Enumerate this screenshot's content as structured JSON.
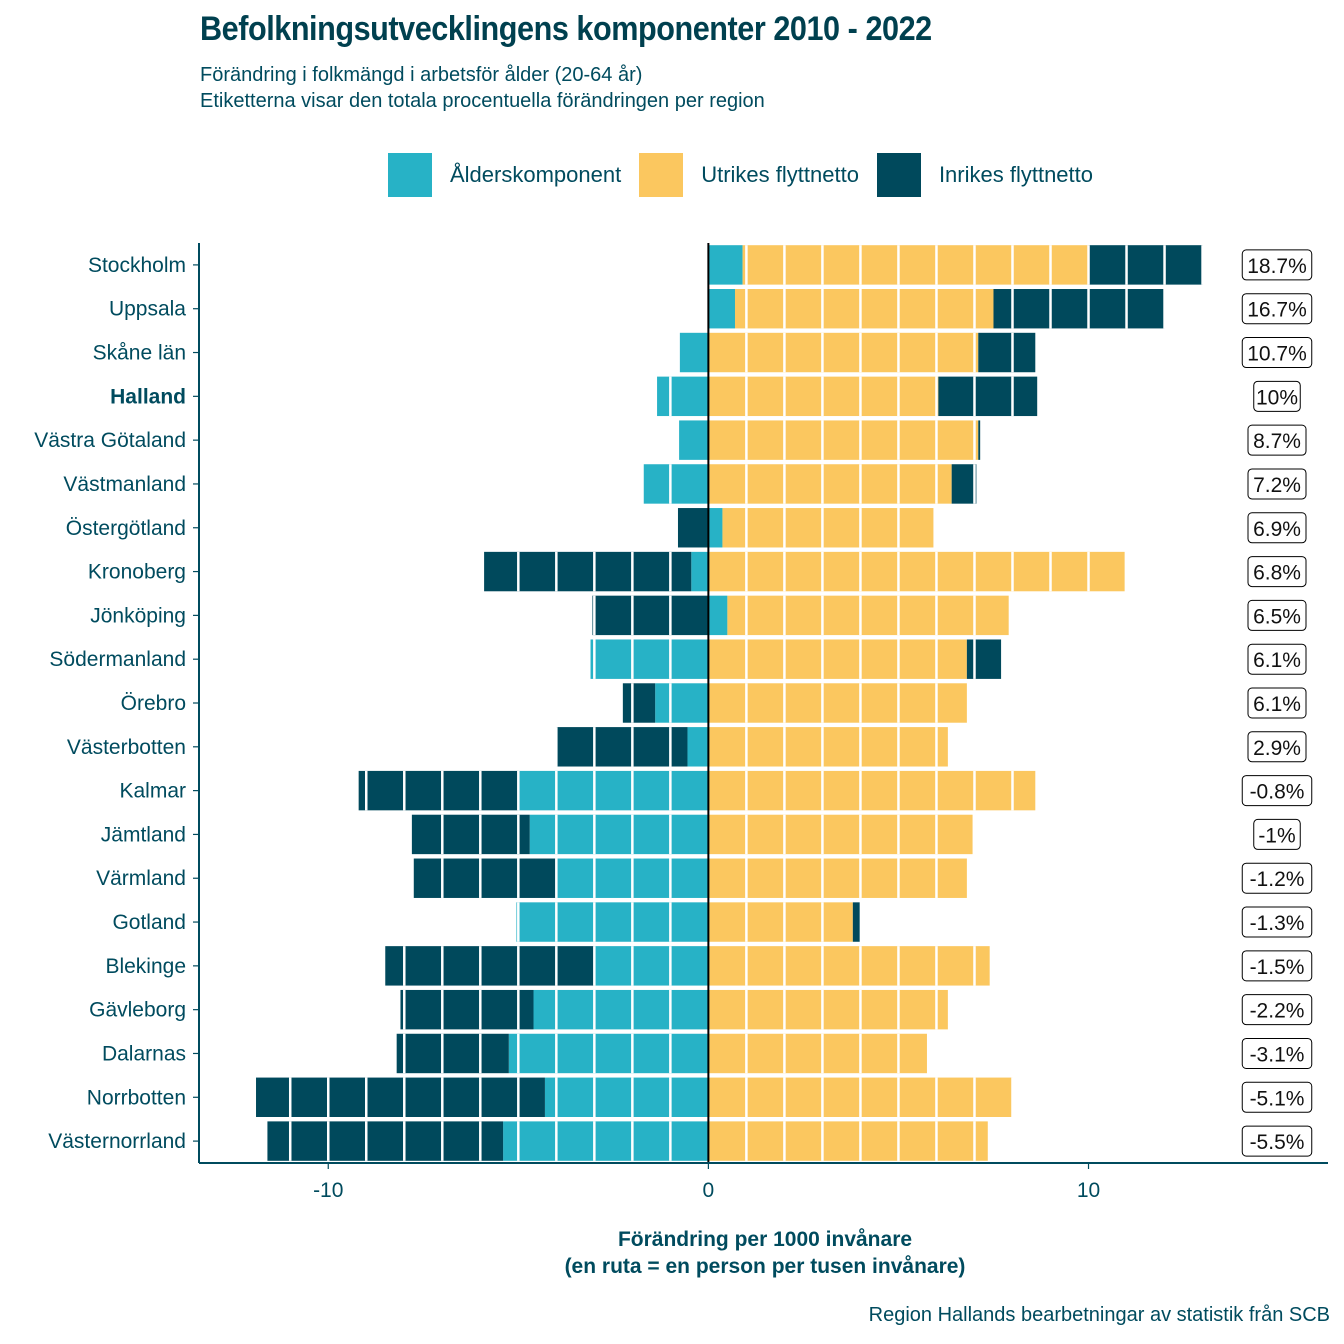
{
  "header": {
    "title": "Befolkningsutvecklingens komponenter 2010 - 2022",
    "subtitle_line1": "Förändring i folkmängd i arbetsför ålder (20-64 år)",
    "subtitle_line2": "Etiketterna visar den totala procentuella förändringen per region"
  },
  "legend": [
    {
      "label": "Ålderskomponent",
      "color": "#27b2c6"
    },
    {
      "label": "Utrikes flyttnetto",
      "color": "#fbc75f"
    },
    {
      "label": "Inrikes flyttnetto",
      "color": "#00495c"
    }
  ],
  "footer": {
    "xlabel_line1": "Förändring per 1000 invånare",
    "xlabel_line2": "(en ruta = en person per tusen invånare)",
    "caption": "Region Hallands bearbetningar av statistik från SCB"
  },
  "chart_data": {
    "type": "bar",
    "orientation": "horizontal",
    "stacked": true,
    "title": "Befolkningsutvecklingens komponenter 2010 - 2022",
    "xlabel": "Förändring per 1000 invånare (en ruta = en person per tusen invånare)",
    "ylabel": "",
    "xlim": [
      -13.4,
      16.3
    ],
    "xticks": [
      -10,
      0,
      10
    ],
    "xtick_labels": [
      "-10",
      "0",
      "10"
    ],
    "grid": false,
    "legend_position": "top",
    "highlight_category": "Halland",
    "categories": [
      "Stockholm",
      "Uppsala",
      "Skåne län",
      "Halland",
      "Västra Götaland",
      "Västmanland",
      "Östergötland",
      "Kronoberg",
      "Jönköping",
      "Södermanland",
      "Örebro",
      "Västerbotten",
      "Kalmar",
      "Jämtland",
      "Värmland",
      "Gotland",
      "Blekinge",
      "Gävleborg",
      "Dalarnas",
      "Norrbotten",
      "Västernorrland"
    ],
    "series": [
      {
        "name": "Ålderskomponent",
        "color": "#27b2c6",
        "values": [
          0.9,
          0.7,
          -0.75,
          -1.35,
          -0.77,
          -1.7,
          0.37,
          -0.45,
          0.5,
          -3.1,
          -1.4,
          -0.55,
          -5.0,
          -4.7,
          -4.0,
          -5.05,
          -3.0,
          -4.6,
          -5.25,
          -4.3,
          -5.4
        ]
      },
      {
        "name": "Utrikes flyttnetto",
        "color": "#fbc75f",
        "values": [
          9.1,
          6.8,
          7.1,
          6.05,
          7.1,
          6.4,
          5.55,
          10.95,
          7.4,
          6.8,
          6.8,
          6.3,
          8.6,
          6.95,
          6.8,
          3.8,
          7.4,
          6.3,
          5.75,
          8.0,
          7.35
        ]
      },
      {
        "name": "Inrikes flyttnetto",
        "color": "#00495c",
        "values": [
          3.0,
          4.5,
          1.5,
          2.6,
          0.05,
          0.65,
          -0.8,
          -5.45,
          -3.05,
          0.9,
          -0.85,
          -3.45,
          -4.2,
          -3.1,
          -3.75,
          0.18,
          -5.5,
          -3.5,
          -2.95,
          -7.6,
          -6.2
        ]
      }
    ],
    "labels": [
      "18.7%",
      "16.7%",
      "10.7%",
      "10%",
      "8.7%",
      "7.2%",
      "6.9%",
      "6.8%",
      "6.5%",
      "6.1%",
      "6.1%",
      "2.9%",
      "-0.8%",
      "-1%",
      "-1.2%",
      "-1.3%",
      "-1.5%",
      "-2.2%",
      "-3.1%",
      "-5.1%",
      "-5.5%"
    ]
  }
}
